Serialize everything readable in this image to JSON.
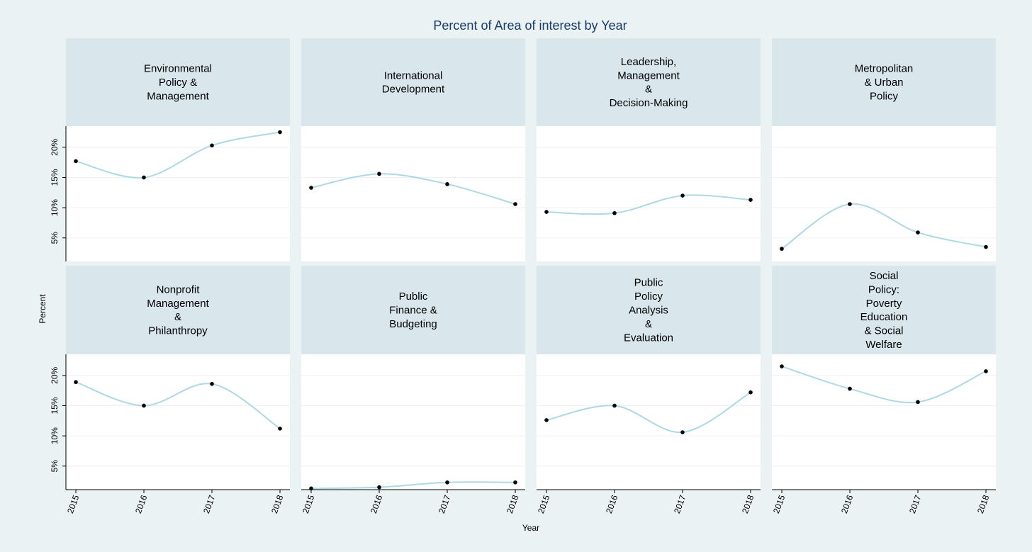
{
  "chart_data": {
    "type": "line",
    "title": "Percent of Area of interest by Year",
    "xlabel": "Year",
    "ylabel": "Percent",
    "x": [
      2015,
      2016,
      2017,
      2018
    ],
    "x_tick_labels": [
      "2015",
      "2016",
      "2017",
      "2018"
    ],
    "y_ticks": [
      5,
      10,
      15,
      20
    ],
    "y_tick_labels": [
      "5%",
      "10%",
      "15%",
      "20%"
    ],
    "ylim": [
      1.1,
      23.5
    ],
    "grid": true,
    "line_color": "#add8e6",
    "point_color": "#000000",
    "panel_header_color": "#d9e6ec",
    "background_color": "#eaf2f3",
    "series": [
      {
        "name": "Environmental Policy & Management",
        "label_lines": [
          "Environmental",
          "Policy &",
          "Management"
        ],
        "values": [
          17.7,
          15.0,
          20.3,
          22.5
        ]
      },
      {
        "name": "International Development",
        "label_lines": [
          "International",
          "Development"
        ],
        "values": [
          13.3,
          15.6,
          13.9,
          10.6
        ]
      },
      {
        "name": "Leadership, Management & Decision-Making",
        "label_lines": [
          "Leadership,",
          "Management",
          "&",
          "Decision-Making"
        ],
        "values": [
          9.3,
          9.1,
          12.0,
          11.3
        ]
      },
      {
        "name": "Metropolitan & Urban Policy",
        "label_lines": [
          "Metropolitan",
          "& Urban",
          "Policy"
        ],
        "values": [
          3.2,
          10.6,
          5.9,
          3.5
        ]
      },
      {
        "name": "Nonprofit Management & Philanthropy",
        "label_lines": [
          "Nonprofit",
          "Management",
          "&",
          "Philanthropy"
        ],
        "values": [
          18.9,
          15.0,
          18.6,
          11.2
        ]
      },
      {
        "name": "Public Finance & Budgeting",
        "label_lines": [
          "Public",
          "Finance &",
          "Budgeting"
        ],
        "values": [
          1.3,
          1.5,
          2.3,
          2.3
        ]
      },
      {
        "name": "Public Policy Analysis & Evaluation",
        "label_lines": [
          "Public",
          "Policy",
          "Analysis",
          "&",
          "Evaluation"
        ],
        "values": [
          12.6,
          15.0,
          10.6,
          17.2
        ]
      },
      {
        "name": "Social Policy: Poverty Education & Social Welfare",
        "label_lines": [
          "Social",
          "Policy:",
          "Poverty",
          "Education",
          "& Social",
          "Welfare"
        ],
        "values": [
          21.5,
          17.8,
          15.6,
          20.7
        ]
      }
    ]
  }
}
